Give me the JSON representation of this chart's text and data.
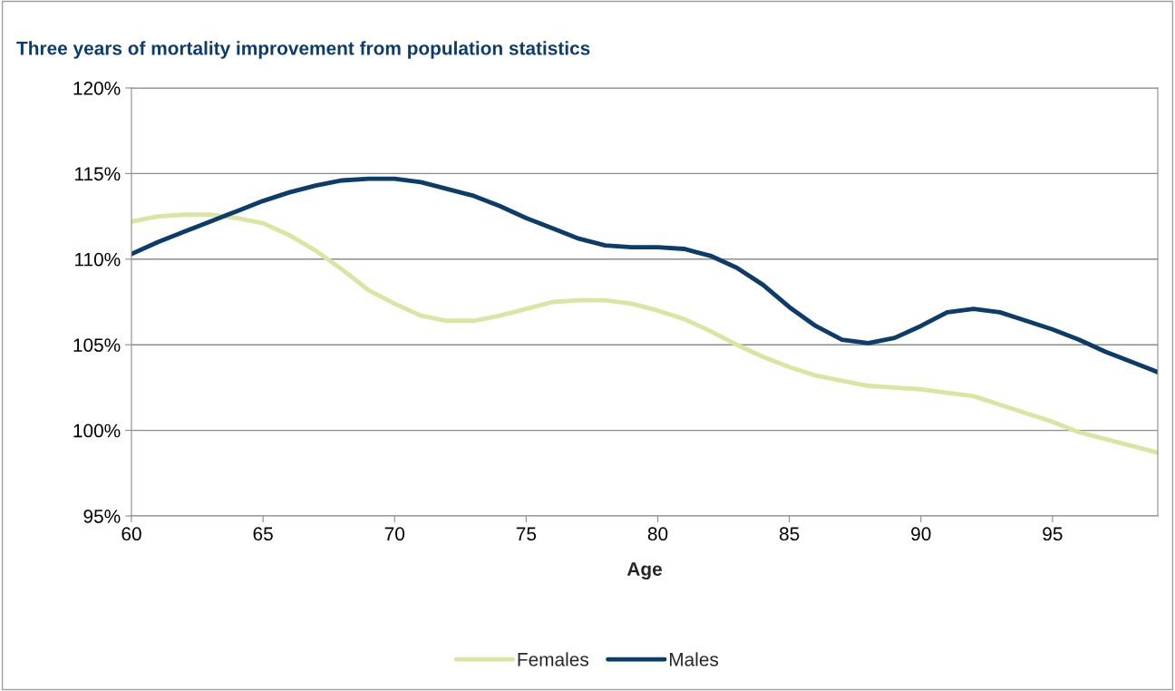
{
  "chart_data": {
    "type": "line",
    "title": "Three years of mortality improvement from population statistics",
    "xlabel": "Age",
    "x": [
      60,
      61,
      62,
      63,
      64,
      65,
      66,
      67,
      68,
      69,
      70,
      71,
      72,
      73,
      74,
      75,
      76,
      77,
      78,
      79,
      80,
      81,
      82,
      83,
      84,
      85,
      86,
      87,
      88,
      89,
      90,
      91,
      92,
      93,
      94,
      95,
      96,
      97,
      98,
      99
    ],
    "series": [
      {
        "name": "Females",
        "color": "#d9e5a1",
        "values": [
          112.2,
          112.5,
          112.6,
          112.6,
          112.4,
          112.1,
          111.4,
          110.5,
          109.4,
          108.2,
          107.4,
          106.7,
          106.4,
          106.4,
          106.7,
          107.1,
          107.5,
          107.6,
          107.6,
          107.4,
          107.0,
          106.5,
          105.8,
          105.0,
          104.3,
          103.7,
          103.2,
          102.9,
          102.6,
          102.5,
          102.4,
          102.2,
          102.0,
          101.5,
          101.0,
          100.5,
          99.9,
          99.5,
          99.1,
          98.7
        ]
      },
      {
        "name": "Males",
        "color": "#0c3c6a",
        "values": [
          110.3,
          111.0,
          111.6,
          112.2,
          112.8,
          113.4,
          113.9,
          114.3,
          114.6,
          114.7,
          114.7,
          114.5,
          114.1,
          113.7,
          113.1,
          112.4,
          111.8,
          111.2,
          110.8,
          110.7,
          110.7,
          110.6,
          110.2,
          109.5,
          108.5,
          107.2,
          106.1,
          105.3,
          105.1,
          105.4,
          106.1,
          106.9,
          107.1,
          106.9,
          106.4,
          105.9,
          105.3,
          104.6,
          104.0,
          103.4
        ]
      }
    ],
    "xlim": [
      60,
      99
    ],
    "xticks": [
      60,
      65,
      70,
      75,
      80,
      85,
      90,
      95
    ],
    "ylim": [
      95,
      120
    ],
    "yticks": [
      {
        "value": 95,
        "label": "95%"
      },
      {
        "value": 100,
        "label": "100%"
      },
      {
        "value": 105,
        "label": "105%"
      },
      {
        "value": 110,
        "label": "110%"
      },
      {
        "value": 115,
        "label": "115%"
      },
      {
        "value": 120,
        "label": "120%"
      }
    ],
    "grid": "y",
    "legend": "bottom",
    "marker": "none",
    "line_style": "solid"
  }
}
